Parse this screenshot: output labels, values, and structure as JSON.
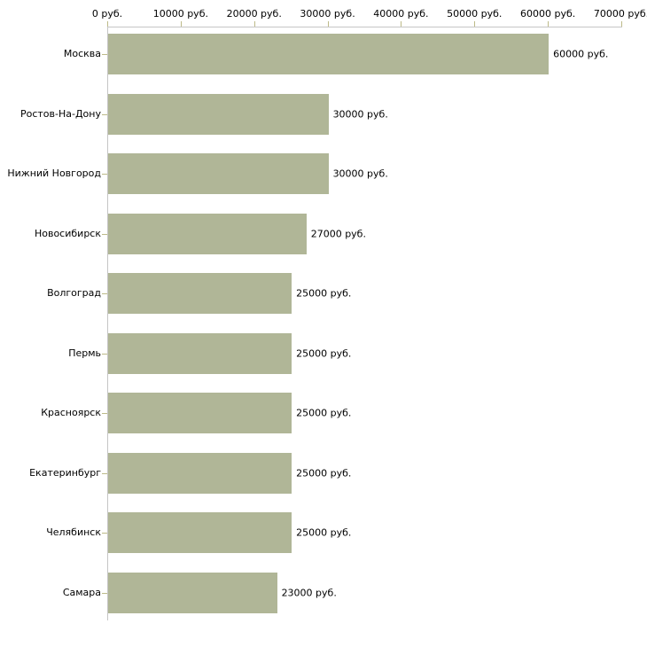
{
  "chart_data": {
    "type": "bar",
    "orientation": "horizontal",
    "title": "",
    "xlabel": "",
    "ylabel": "",
    "unit": "руб.",
    "categories": [
      "Москва",
      "Ростов-На-Дону",
      "Нижний Новгород",
      "Новосибирск",
      "Волгоград",
      "Пермь",
      "Красноярск",
      "Екатеринбург",
      "Челябинск",
      "Самара"
    ],
    "values": [
      60000,
      30000,
      30000,
      27000,
      25000,
      25000,
      25000,
      25000,
      25000,
      23000
    ],
    "value_labels": [
      "60000 руб.",
      "30000 руб.",
      "30000 руб.",
      "27000 руб.",
      "25000 руб.",
      "25000 руб.",
      "25000 руб.",
      "25000 руб.",
      "25000 руб.",
      "23000 руб."
    ],
    "x_ticks": [
      {
        "value": 0,
        "label": "0 руб."
      },
      {
        "value": 10000,
        "label": "10000 руб."
      },
      {
        "value": 20000,
        "label": "20000 руб."
      },
      {
        "value": 30000,
        "label": "30000 руб."
      },
      {
        "value": 40000,
        "label": "40000 руб."
      },
      {
        "value": 50000,
        "label": "50000 руб."
      },
      {
        "value": 60000,
        "label": "60000 руб."
      },
      {
        "value": 70000,
        "label": "70000 руб."
      }
    ],
    "xlim": [
      0,
      70000
    ],
    "grid": false,
    "legend": false,
    "colors": {
      "bar": "#b0b697",
      "axis_line": "#c6c6c6",
      "tick": "#bdba88",
      "text": "#000000",
      "background": "#ffffff"
    }
  }
}
